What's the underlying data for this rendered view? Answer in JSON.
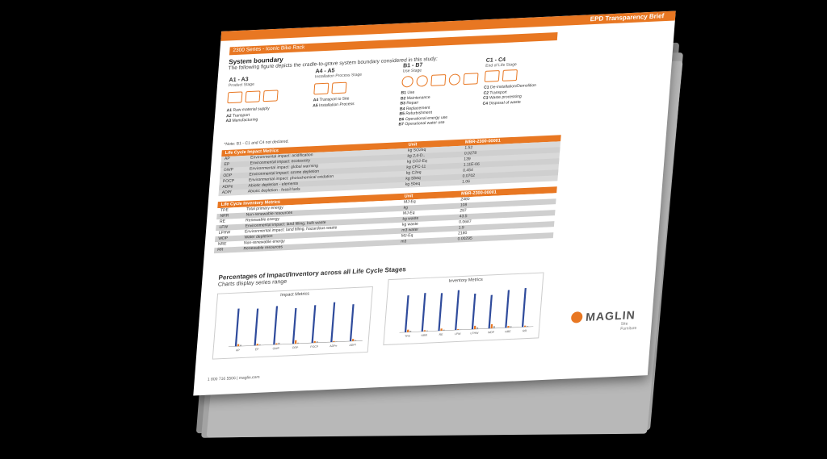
{
  "document": {
    "brief_title": "EPD Transparency Brief",
    "series_label": "2300 Series - Iconic Bike Rack",
    "boundary_heading": "System boundary",
    "boundary_sub": "The following figure depicts the cradle-to-grave system boundary considered in this study:",
    "stages": [
      {
        "code": "A1 - A3",
        "label": "Product Stage",
        "items": [
          [
            "A1",
            "Raw material supply"
          ],
          [
            "A2",
            "Transport"
          ],
          [
            "A3",
            "Manufacturing"
          ]
        ]
      },
      {
        "code": "A4 - A5",
        "label": "Installation Process Stage",
        "items": [
          [
            "A4",
            "Transport to Site"
          ],
          [
            "A5",
            "Installation Process"
          ]
        ]
      },
      {
        "code": "B1 - B7",
        "label": "Use Stage",
        "items": [
          [
            "B1",
            "Use"
          ],
          [
            "B2",
            "Maintenance"
          ],
          [
            "B3",
            "Repair"
          ],
          [
            "B4",
            "Replacement"
          ],
          [
            "B5",
            "Refurbishment"
          ],
          [
            "B6",
            "Operational energy use"
          ],
          [
            "B7",
            "Operational water use"
          ]
        ]
      },
      {
        "code": "C1 - C4",
        "label": "End of Life Stage",
        "items": [
          [
            "C1",
            "De-installation/Demolition"
          ],
          [
            "C2",
            "Transport"
          ],
          [
            "C3",
            "Waste processing"
          ],
          [
            "C4",
            "Disposal of waste"
          ]
        ]
      }
    ],
    "note": "*Note: B1 - C1 and C4 not declared.",
    "lci": {
      "title": "Life Cycle Impact Metrics",
      "unit_header": "Unit",
      "product_header": "MBR-2300-00001",
      "rows": [
        [
          "AP",
          "Environmental impact: acidification",
          "kg SO2eq",
          "1.52"
        ],
        [
          "EP",
          "Environmental impact: ecotoxicity",
          "kg 2,4-D..",
          "0.0278"
        ],
        [
          "GWP",
          "Environmental impact: global warming",
          "kg CO2-Eq",
          "139"
        ],
        [
          "ODP",
          "Environmental impact: ozone depletion",
          "kg CFC-11",
          "1.11E-06"
        ],
        [
          "POCP",
          "Environmental impact: photochemical oxidation",
          "kg C2eq",
          "0.454"
        ],
        [
          "ADPe",
          "Abiotic depletion - elements",
          "kg Sbeq",
          "0.0702"
        ],
        [
          "ADPf",
          "Abiotic depletion - fossil fuels",
          "kg Sbeq",
          "1.06"
        ]
      ]
    },
    "inv": {
      "title": "Life Cycle Inventory Metrics",
      "unit_header": "Unit",
      "product_header": "MBR-2300-00001",
      "rows": [
        [
          "TPE",
          "Total primary energy",
          "MJ-Eq",
          "2480"
        ],
        [
          "NRR",
          "Non-renewable resources",
          "kg",
          "108"
        ],
        [
          "RE",
          "Renewable energy",
          "MJ-Eq",
          "297"
        ],
        [
          "LFW",
          "Environmental impact: land filling, bulk waste",
          "kg waste",
          "43.5"
        ],
        [
          "LFHW",
          "Environmental impact: land filling, hazardous waste",
          "kg waste",
          "0.0687"
        ],
        [
          "WDP",
          "Water depletion",
          "m3 water",
          "1.9"
        ],
        [
          "NRE",
          "Non-renewable energy",
          "MJ-Eq",
          "2180"
        ],
        [
          "RR",
          "Renewable resources",
          "m3",
          "0.00295"
        ]
      ]
    },
    "charts_heading": "Percentages of Impact/Inventory across all Life Cycle Stages",
    "charts_sub": "Charts display series range",
    "brand": {
      "name": "MAGLIN",
      "tagline": "Site Furniture",
      "color": "#e87722"
    },
    "footer": "1 800 716 5506 | maglin.com"
  },
  "chart_data": [
    {
      "type": "bar",
      "title": "Impact Metrics",
      "categories": [
        "AP",
        "EP",
        "GWP",
        "ODP",
        "POCP",
        "ADPe",
        "ADPf"
      ],
      "ylim": [
        0,
        100
      ],
      "series": [
        {
          "values": [
            90,
            88,
            92,
            85,
            90,
            95,
            88
          ]
        },
        {
          "values": [
            5,
            4,
            3,
            8,
            4,
            2,
            5
          ]
        },
        {
          "values": [
            3,
            2,
            4,
            2,
            3,
            1,
            2
          ]
        }
      ]
    },
    {
      "type": "bar",
      "title": "Inventory Metrics",
      "categories": [
        "TPE",
        "NRR",
        "RE",
        "LFW",
        "LFHW",
        "WDP",
        "NRE",
        "RR"
      ],
      "ylim": [
        0,
        100
      ],
      "series": [
        {
          "values": [
            88,
            92,
            90,
            95,
            85,
            80,
            90,
            93
          ]
        },
        {
          "values": [
            6,
            3,
            5,
            2,
            8,
            10,
            4,
            3
          ]
        },
        {
          "values": [
            3,
            2,
            2,
            1,
            4,
            5,
            3,
            2
          ]
        }
      ]
    }
  ]
}
